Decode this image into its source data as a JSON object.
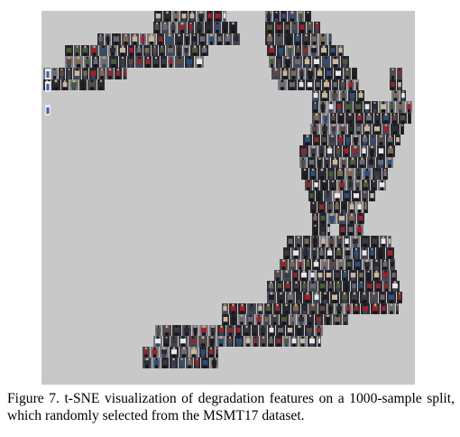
{
  "figure": {
    "type": "t-SNE scatter of person re-identification thumbnail crops",
    "background_color": "#c8c8c8",
    "thumbnail_palette": [
      "#1c1c22",
      "#2b2b33",
      "#3a3a44",
      "#5a4a45",
      "#6b6b75",
      "#8a2a2e",
      "#a31f2b",
      "#2e4f7a",
      "#7d6a55",
      "#e8e8ea",
      "#c9b8a0",
      "#4a5a3a"
    ]
  },
  "caption": {
    "text": "Figure 7. t-SNE visualization of degradation features on a 1000-sample split, which randomly selected from the MSMT17 dataset."
  }
}
